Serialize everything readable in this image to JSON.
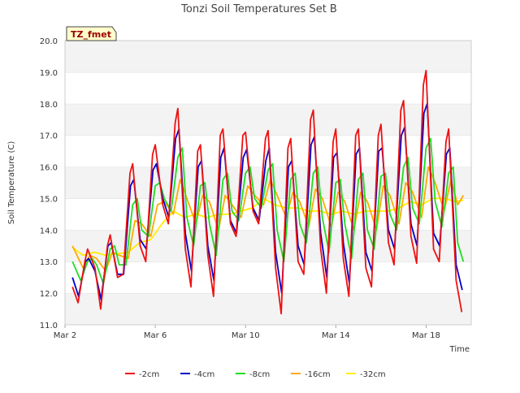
{
  "chart_data": {
    "type": "line",
    "title": "Tonzi Soil Temperatures Set B",
    "badge": "TZ_fmet",
    "xlabel": "Time",
    "ylabel": "Soil Temperature (C)",
    "xlim": [
      0,
      18.0
    ],
    "ylim": [
      11.0,
      20.0
    ],
    "x_ticks": [
      {
        "value": 0.0,
        "label": "Mar 2"
      },
      {
        "value": 4.0,
        "label": "Mar 6"
      },
      {
        "value": 8.0,
        "label": "Mar 10"
      },
      {
        "value": 12.0,
        "label": "Mar 14"
      },
      {
        "value": 16.0,
        "label": "Mar 18"
      }
    ],
    "y_ticks": [
      "11.0",
      "12.0",
      "13.0",
      "14.0",
      "15.0",
      "16.0",
      "17.0",
      "18.0",
      "19.0",
      "20.0"
    ],
    "grid": true,
    "legend_position": "bottom",
    "series": [
      {
        "name": "-2cm",
        "color": "#ee1111",
        "x": [
          0.33,
          0.58,
          0.88,
          1.0,
          1.33,
          1.58,
          1.88,
          2.0,
          2.33,
          2.58,
          2.88,
          3.0,
          3.33,
          3.58,
          3.88,
          4.0,
          4.33,
          4.58,
          4.88,
          5.0,
          5.33,
          5.58,
          5.88,
          6.0,
          6.33,
          6.58,
          6.88,
          7.0,
          7.33,
          7.58,
          7.88,
          8.0,
          8.33,
          8.58,
          8.88,
          9.0,
          9.33,
          9.58,
          9.88,
          10.0,
          10.33,
          10.58,
          10.88,
          11.0,
          11.33,
          11.58,
          11.88,
          12.0,
          12.33,
          12.58,
          12.88,
          13.0,
          13.33,
          13.58,
          13.88,
          14.0,
          14.33,
          14.58,
          14.88,
          15.0,
          15.33,
          15.58,
          15.88,
          16.0,
          16.33,
          16.58,
          16.88,
          17.0,
          17.33,
          17.58
        ],
        "y": [
          12.2,
          11.7,
          13.0,
          13.4,
          12.8,
          11.5,
          13.5,
          13.85,
          12.5,
          12.6,
          15.8,
          16.1,
          13.5,
          13.0,
          16.4,
          16.7,
          14.8,
          14.2,
          17.4,
          17.85,
          13.4,
          12.2,
          16.5,
          16.7,
          13.2,
          11.9,
          17.0,
          17.2,
          14.2,
          13.8,
          17.0,
          17.1,
          14.6,
          14.2,
          16.9,
          17.15,
          12.8,
          11.35,
          16.6,
          16.9,
          13.0,
          12.6,
          17.5,
          17.8,
          13.4,
          12.0,
          16.8,
          17.2,
          13.1,
          11.9,
          17.0,
          17.2,
          12.8,
          12.2,
          17.0,
          17.35,
          13.6,
          12.9,
          17.8,
          18.1,
          13.8,
          12.95,
          18.6,
          19.05,
          13.4,
          13.0,
          16.8,
          17.2,
          12.4,
          11.4
        ]
      },
      {
        "name": "-4cm",
        "color": "#0000cc",
        "x": [
          0.33,
          0.6,
          0.9,
          1.05,
          1.33,
          1.6,
          1.9,
          2.05,
          2.33,
          2.6,
          2.9,
          3.05,
          3.33,
          3.6,
          3.9,
          4.05,
          4.33,
          4.6,
          4.9,
          5.05,
          5.33,
          5.6,
          5.9,
          6.05,
          6.33,
          6.6,
          6.9,
          7.05,
          7.33,
          7.6,
          7.9,
          8.05,
          8.33,
          8.6,
          8.9,
          9.05,
          9.33,
          9.6,
          9.9,
          10.05,
          10.33,
          10.6,
          10.9,
          11.05,
          11.33,
          11.6,
          11.9,
          12.05,
          12.33,
          12.6,
          12.9,
          13.05,
          13.33,
          13.6,
          13.9,
          14.05,
          14.33,
          14.6,
          14.9,
          15.05,
          15.33,
          15.6,
          15.9,
          16.05,
          16.33,
          16.6,
          16.9,
          17.05,
          17.33,
          17.6
        ],
        "y": [
          12.5,
          11.9,
          13.0,
          13.1,
          12.7,
          11.8,
          13.5,
          13.6,
          12.6,
          12.6,
          15.4,
          15.6,
          13.7,
          13.4,
          15.9,
          16.1,
          15.0,
          14.4,
          16.9,
          17.2,
          13.9,
          12.7,
          16.0,
          16.2,
          13.5,
          12.4,
          16.3,
          16.6,
          14.3,
          13.9,
          16.3,
          16.55,
          14.7,
          14.3,
          16.2,
          16.6,
          13.3,
          12.0,
          16.0,
          16.2,
          13.5,
          12.9,
          16.7,
          16.95,
          13.9,
          12.5,
          16.3,
          16.45,
          13.6,
          12.3,
          16.4,
          16.6,
          13.3,
          12.7,
          16.5,
          16.6,
          14.0,
          13.4,
          17.0,
          17.25,
          14.2,
          13.5,
          17.7,
          18.0,
          13.9,
          13.5,
          16.4,
          16.6,
          12.9,
          12.1
        ]
      },
      {
        "name": "-8cm",
        "color": "#22dd22",
        "x": [
          0.33,
          0.7,
          1.0,
          1.2,
          1.4,
          1.7,
          2.0,
          2.2,
          2.4,
          2.7,
          3.0,
          3.2,
          3.4,
          3.7,
          4.0,
          4.2,
          4.4,
          4.7,
          5.0,
          5.2,
          5.4,
          5.7,
          6.0,
          6.2,
          6.4,
          6.7,
          7.0,
          7.2,
          7.4,
          7.7,
          8.0,
          8.2,
          8.4,
          8.7,
          9.0,
          9.2,
          9.4,
          9.7,
          10.0,
          10.2,
          10.4,
          10.7,
          11.0,
          11.2,
          11.4,
          11.7,
          12.0,
          12.2,
          12.4,
          12.7,
          13.0,
          13.2,
          13.4,
          13.7,
          14.0,
          14.2,
          14.4,
          14.7,
          15.0,
          15.2,
          15.4,
          15.7,
          16.0,
          16.2,
          16.4,
          16.7,
          17.0,
          17.2,
          17.4,
          17.65
        ],
        "y": [
          13.0,
          12.4,
          13.0,
          13.1,
          12.9,
          12.3,
          13.4,
          13.5,
          12.9,
          12.9,
          14.8,
          15.0,
          14.0,
          13.8,
          15.4,
          15.5,
          15.0,
          14.6,
          16.3,
          16.6,
          14.4,
          13.5,
          15.4,
          15.5,
          14.2,
          13.2,
          15.6,
          15.8,
          14.6,
          14.3,
          15.8,
          16.0,
          15.0,
          14.7,
          15.9,
          16.1,
          14.0,
          13.0,
          15.6,
          15.8,
          14.2,
          13.6,
          15.8,
          16.0,
          14.4,
          13.3,
          15.5,
          15.6,
          14.2,
          13.1,
          15.6,
          15.8,
          14.0,
          13.4,
          15.7,
          15.8,
          14.5,
          14.0,
          16.0,
          16.3,
          14.7,
          14.2,
          16.6,
          16.9,
          14.9,
          14.1,
          15.8,
          16.0,
          13.6,
          13.0
        ]
      },
      {
        "name": "-16cm",
        "color": "#ffaa00",
        "x": [
          0.33,
          0.8,
          1.1,
          1.4,
          1.8,
          2.1,
          2.4,
          2.8,
          3.1,
          3.4,
          3.8,
          4.1,
          4.4,
          4.8,
          5.1,
          5.4,
          5.8,
          6.1,
          6.4,
          6.8,
          7.1,
          7.4,
          7.8,
          8.1,
          8.4,
          8.8,
          9.1,
          9.4,
          9.8,
          10.1,
          10.4,
          10.8,
          11.1,
          11.4,
          11.8,
          12.1,
          12.4,
          12.8,
          13.1,
          13.4,
          13.8,
          14.1,
          14.4,
          14.8,
          15.1,
          15.4,
          15.8,
          16.1,
          16.4,
          16.8,
          17.1,
          17.4,
          17.65
        ],
        "y": [
          13.5,
          12.8,
          13.2,
          13.1,
          12.7,
          13.3,
          13.2,
          13.1,
          14.3,
          14.2,
          13.8,
          14.8,
          14.9,
          14.5,
          15.6,
          15.0,
          14.2,
          15.1,
          14.9,
          14.0,
          15.1,
          14.8,
          14.4,
          15.4,
          15.1,
          14.8,
          15.6,
          15.1,
          14.4,
          15.2,
          14.9,
          14.1,
          15.3,
          15.0,
          14.1,
          15.2,
          14.9,
          14.0,
          15.2,
          14.9,
          14.0,
          15.4,
          15.1,
          14.2,
          15.5,
          15.2,
          14.4,
          16.0,
          15.5,
          14.6,
          15.6,
          14.8,
          15.1
        ]
      },
      {
        "name": "-32cm",
        "color": "#ffee00",
        "x": [
          0.33,
          0.8,
          1.3,
          1.8,
          2.3,
          2.8,
          3.3,
          3.8,
          4.3,
          4.8,
          5.3,
          5.8,
          6.3,
          6.8,
          7.3,
          7.8,
          8.3,
          8.8,
          9.3,
          9.8,
          10.3,
          10.8,
          11.3,
          11.8,
          12.3,
          12.8,
          13.3,
          13.8,
          14.3,
          14.8,
          15.3,
          15.8,
          16.3,
          16.8,
          17.3,
          17.65
        ],
        "y": [
          13.45,
          13.2,
          13.3,
          13.2,
          13.25,
          13.3,
          13.6,
          13.7,
          14.2,
          14.6,
          14.4,
          14.5,
          14.4,
          14.5,
          14.5,
          14.6,
          14.7,
          15.0,
          14.8,
          14.7,
          14.7,
          14.6,
          14.6,
          14.5,
          14.6,
          14.5,
          14.6,
          14.6,
          14.6,
          14.7,
          14.9,
          14.8,
          15.0,
          15.0,
          14.9,
          14.95
        ]
      }
    ]
  }
}
